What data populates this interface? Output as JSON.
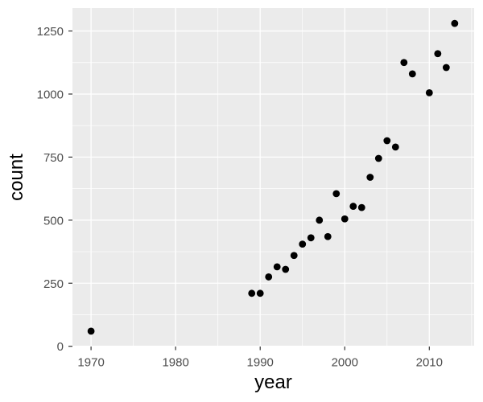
{
  "chart_data": {
    "type": "scatter",
    "title": "",
    "xlabel": "year",
    "ylabel": "count",
    "legend": "none",
    "grid": true,
    "x_axis": {
      "title": "year",
      "range": [
        1967.8,
        2015.3
      ],
      "ticks": [
        {
          "value": 1970,
          "label": "1970"
        },
        {
          "value": 1980,
          "label": "1980"
        },
        {
          "value": 1990,
          "label": "1990"
        },
        {
          "value": 2000,
          "label": "2000"
        },
        {
          "value": 2010,
          "label": "2010"
        }
      ],
      "minor_ticks": [
        1975,
        1985,
        1995,
        2005,
        2015
      ]
    },
    "y_axis": {
      "title": "count",
      "range": [
        -1,
        1341
      ],
      "ticks": [
        {
          "value": 0,
          "label": "0"
        },
        {
          "value": 250,
          "label": "250"
        },
        {
          "value": 500,
          "label": "500"
        },
        {
          "value": 750,
          "label": "750"
        },
        {
          "value": 1000,
          "label": "1000"
        },
        {
          "value": 1250,
          "label": "1250"
        }
      ],
      "minor_ticks": [
        125,
        375,
        625,
        875,
        1125
      ]
    },
    "points": [
      {
        "year": 1970,
        "count": 60
      },
      {
        "year": 1989,
        "count": 210
      },
      {
        "year": 1990,
        "count": 210
      },
      {
        "year": 1991,
        "count": 275
      },
      {
        "year": 1992,
        "count": 315
      },
      {
        "year": 1993,
        "count": 305
      },
      {
        "year": 1994,
        "count": 360
      },
      {
        "year": 1995,
        "count": 405
      },
      {
        "year": 1996,
        "count": 430
      },
      {
        "year": 1997,
        "count": 500
      },
      {
        "year": 1998,
        "count": 435
      },
      {
        "year": 1999,
        "count": 605
      },
      {
        "year": 2000,
        "count": 505
      },
      {
        "year": 2001,
        "count": 555
      },
      {
        "year": 2002,
        "count": 550
      },
      {
        "year": 2003,
        "count": 670
      },
      {
        "year": 2004,
        "count": 745
      },
      {
        "year": 2005,
        "count": 815
      },
      {
        "year": 2006,
        "count": 790
      },
      {
        "year": 2007,
        "count": 1125
      },
      {
        "year": 2008,
        "count": 1080
      },
      {
        "year": 2010,
        "count": 1005
      },
      {
        "year": 2011,
        "count": 1160
      },
      {
        "year": 2012,
        "count": 1105
      },
      {
        "year": 2013,
        "count": 1280
      }
    ],
    "style": {
      "background": "#FFFFFF",
      "panel_bg": "#EBEBEB",
      "grid_color": "#FFFFFF",
      "point_color": "#000000",
      "tick_mark_color": "#333333",
      "tick_label_color": "#4D4D4D",
      "axis_title_color": "#000000"
    }
  }
}
